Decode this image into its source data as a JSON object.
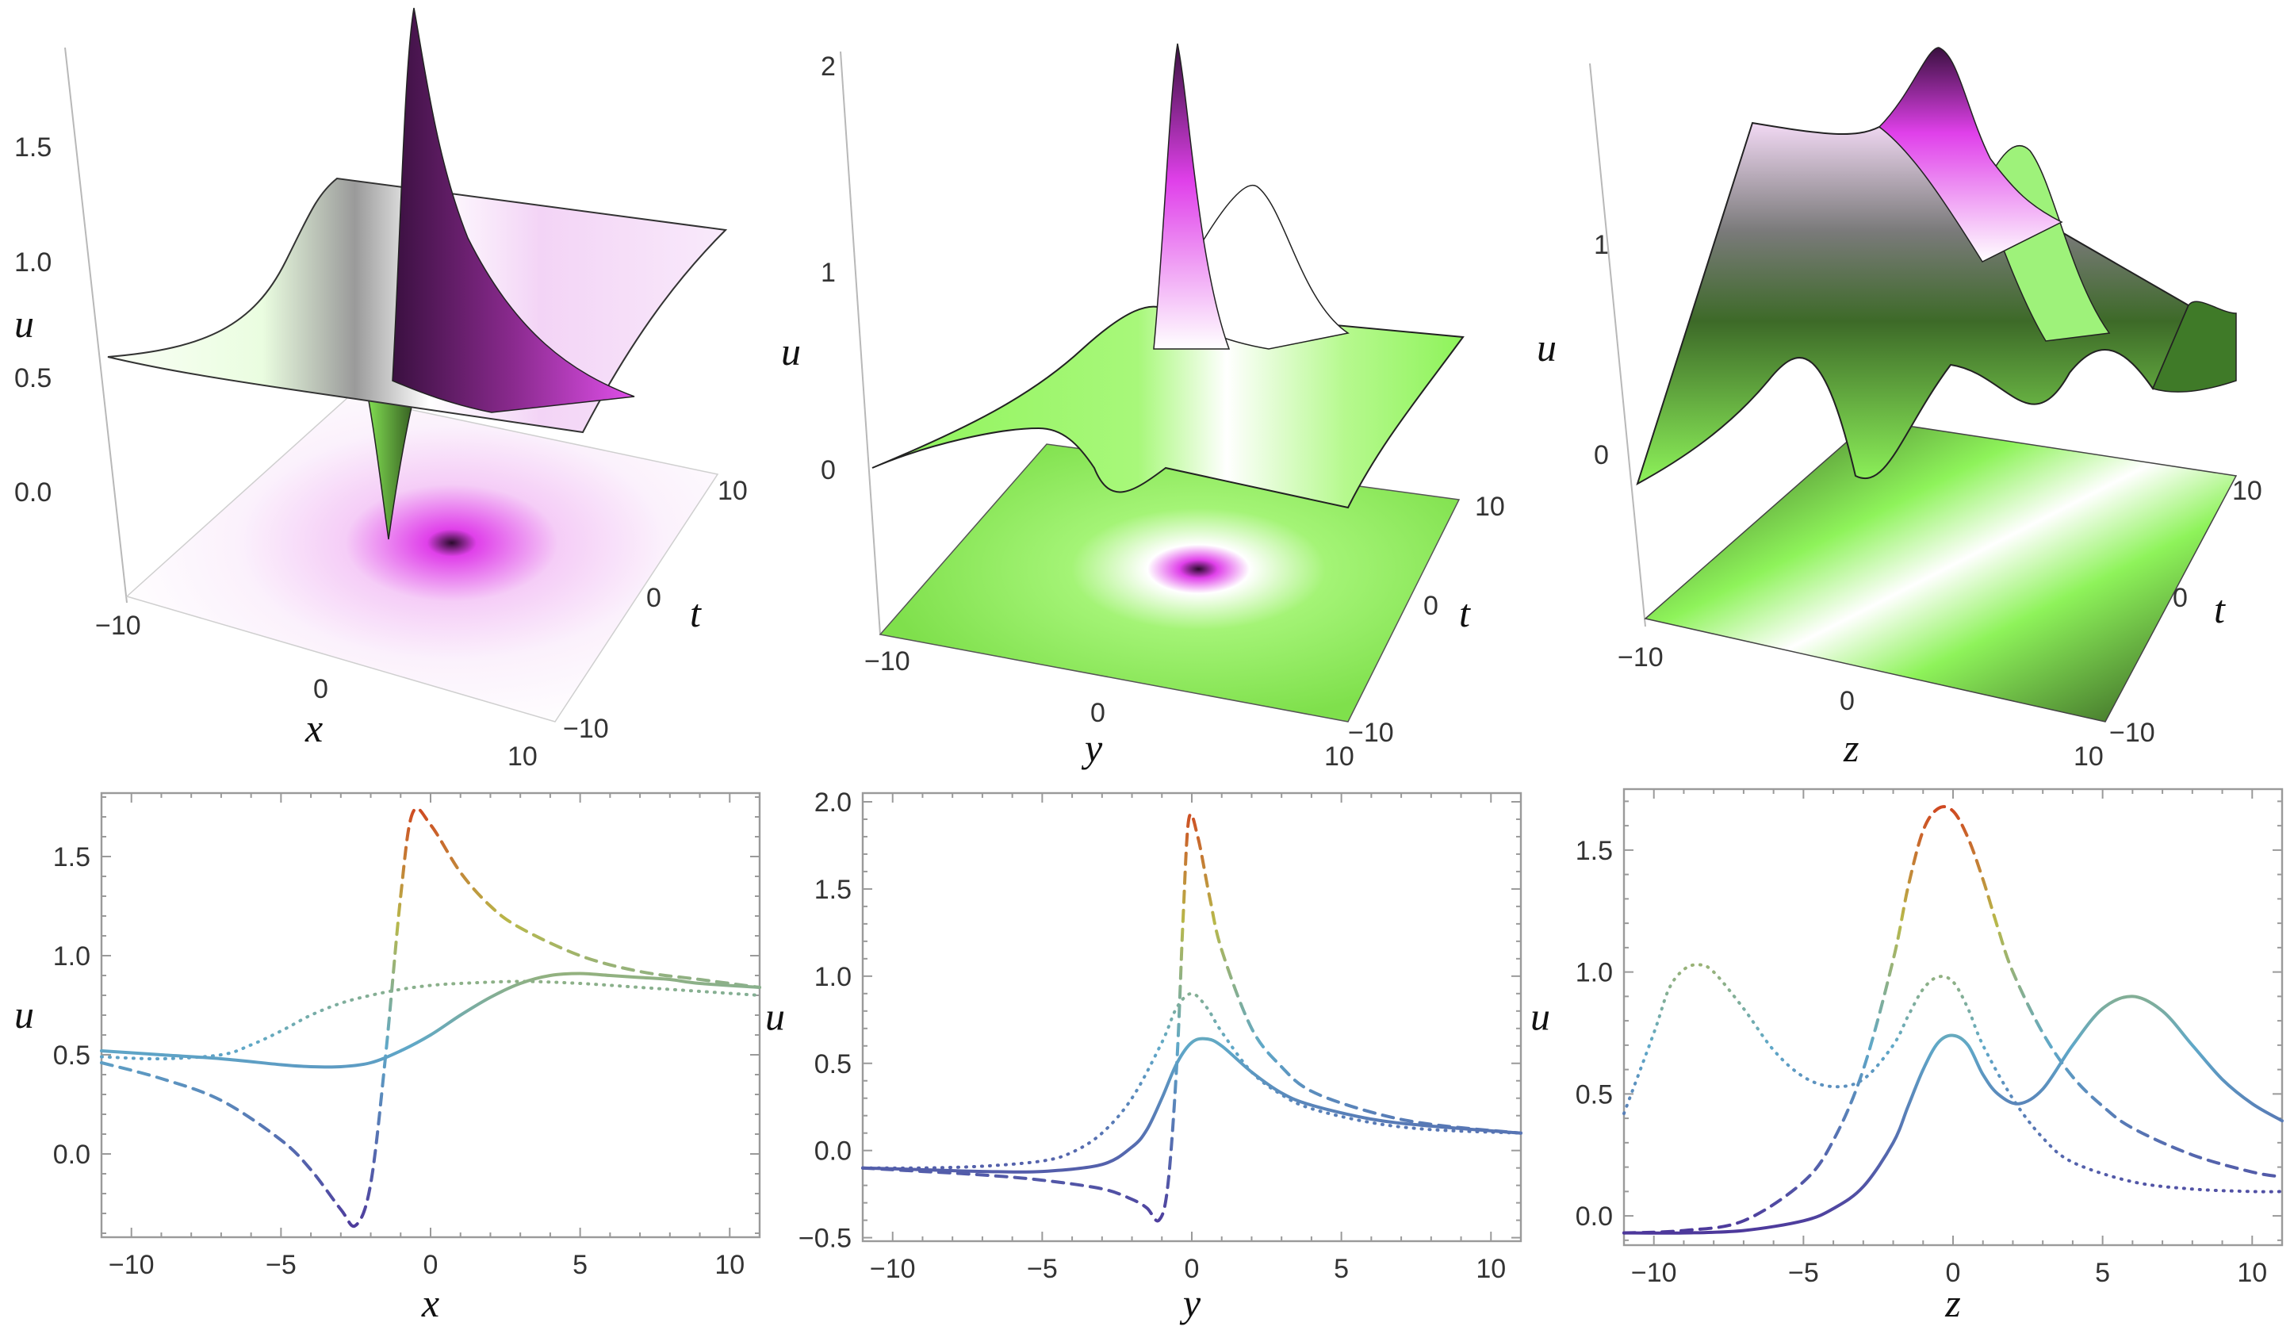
{
  "colors": {
    "axis": "#9a9a9a",
    "gradient_low": "#4b2c96",
    "gradient_mid": "#5fb7b0",
    "gradient_high": "#d23b1c",
    "surface_green": "#8ef35a",
    "surface_darkgreen": "#2f5a1f",
    "surface_magenta": "#e040ea",
    "surface_white": "#ffffff"
  },
  "chart_data": [
    {
      "type": "surface3d",
      "xlabel": "x",
      "ylabel": "t",
      "zlabel": "u",
      "x_ticks": [
        "−10",
        "0",
        "10"
      ],
      "t_ticks": [
        "−10",
        "0",
        "10"
      ],
      "z_ticks": [
        "0.0",
        "0.5",
        "1.0",
        "1.5"
      ],
      "xlim": [
        -10,
        10
      ],
      "tlim": [
        -10,
        10
      ],
      "zlim": [
        -0.4,
        1.9
      ],
      "peak_u": 1.85,
      "min_u": -0.35
    },
    {
      "type": "surface3d",
      "xlabel": "y",
      "ylabel": "t",
      "zlabel": "u",
      "x_ticks": [
        "−10",
        "0",
        "10"
      ],
      "t_ticks": [
        "−10",
        "0",
        "10"
      ],
      "z_ticks": [
        "0",
        "1",
        "2"
      ],
      "xlim": [
        -10,
        10
      ],
      "tlim": [
        -10,
        10
      ],
      "zlim": [
        -0.5,
        2.1
      ],
      "peak_u": 2.0,
      "min_u": -0.4
    },
    {
      "type": "surface3d",
      "xlabel": "z",
      "ylabel": "t",
      "zlabel": "u",
      "x_ticks": [
        "−10",
        "0",
        "10"
      ],
      "t_ticks": [
        "−10",
        "0",
        "10"
      ],
      "z_ticks": [
        "0",
        "1"
      ],
      "xlim": [
        -10,
        10
      ],
      "tlim": [
        -10,
        10
      ],
      "zlim": [
        -0.1,
        1.8
      ],
      "peak_u": 1.75,
      "min_u": 0.0
    },
    {
      "type": "line",
      "xlabel": "x",
      "ylabel": "u",
      "xlim": [
        -11,
        11
      ],
      "ylim": [
        -0.42,
        1.82
      ],
      "x_ticks": [
        -10,
        -5,
        0,
        5,
        10
      ],
      "y_ticks": [
        0.0,
        0.5,
        1.0,
        1.5
      ],
      "y_tick_labels": [
        "0.0",
        "0.5",
        "1.0",
        "1.5"
      ],
      "grid": false,
      "series": [
        {
          "style": "solid",
          "x": [
            -11,
            -9,
            -7,
            -5,
            -4,
            -3,
            -2,
            -1,
            0,
            1,
            2,
            3,
            4,
            5,
            6,
            7,
            8,
            9,
            11
          ],
          "y": [
            0.52,
            0.5,
            0.48,
            0.45,
            0.44,
            0.44,
            0.46,
            0.52,
            0.6,
            0.7,
            0.79,
            0.86,
            0.9,
            0.91,
            0.9,
            0.89,
            0.88,
            0.86,
            0.84
          ]
        },
        {
          "style": "dashed",
          "x": [
            -11,
            -9,
            -7,
            -5,
            -4,
            -3,
            -2.5,
            -2,
            -1.5,
            -1,
            -0.6,
            0,
            1,
            2,
            3,
            5,
            7,
            9,
            11
          ],
          "y": [
            0.46,
            0.38,
            0.27,
            0.07,
            -0.08,
            -0.28,
            -0.36,
            -0.15,
            0.5,
            1.3,
            1.72,
            1.66,
            1.42,
            1.25,
            1.14,
            1.0,
            0.92,
            0.88,
            0.84
          ]
        },
        {
          "style": "dotted",
          "x": [
            -11,
            -9,
            -7,
            -6,
            -5,
            -4,
            -3,
            -2,
            -1,
            0,
            1,
            3,
            5,
            7,
            9,
            11
          ],
          "y": [
            0.49,
            0.48,
            0.5,
            0.55,
            0.62,
            0.7,
            0.76,
            0.8,
            0.83,
            0.85,
            0.86,
            0.87,
            0.86,
            0.84,
            0.82,
            0.8
          ]
        }
      ]
    },
    {
      "type": "line",
      "xlabel": "y",
      "ylabel": "u",
      "xlim": [
        -11,
        11
      ],
      "ylim": [
        -0.52,
        2.05
      ],
      "x_ticks": [
        -10,
        -5,
        0,
        5,
        10
      ],
      "y_ticks": [
        -0.5,
        0.0,
        0.5,
        1.0,
        1.5,
        2.0
      ],
      "y_tick_labels": [
        "−0.5",
        "0.0",
        "0.5",
        "1.0",
        "1.5",
        "2.0"
      ],
      "grid": false,
      "series": [
        {
          "style": "solid",
          "x": [
            -11,
            -9,
            -7,
            -5,
            -3,
            -2,
            -1.5,
            -1,
            -0.5,
            0,
            0.5,
            1,
            2,
            3,
            4,
            6,
            8,
            11
          ],
          "y": [
            -0.1,
            -0.11,
            -0.12,
            -0.12,
            -0.08,
            0.02,
            0.12,
            0.3,
            0.5,
            0.62,
            0.64,
            0.6,
            0.45,
            0.33,
            0.26,
            0.18,
            0.14,
            0.1
          ]
        },
        {
          "style": "dashed",
          "x": [
            -11,
            -9,
            -7,
            -5,
            -3,
            -2,
            -1.5,
            -1.1,
            -0.8,
            -0.5,
            -0.3,
            -0.1,
            0.2,
            0.6,
            1,
            2,
            3,
            4,
            6,
            8,
            11
          ],
          "y": [
            -0.1,
            -0.12,
            -0.14,
            -0.17,
            -0.22,
            -0.28,
            -0.33,
            -0.4,
            -0.2,
            0.5,
            1.3,
            1.9,
            1.8,
            1.45,
            1.15,
            0.7,
            0.48,
            0.34,
            0.22,
            0.15,
            0.1
          ]
        },
        {
          "style": "dotted",
          "x": [
            -11,
            -9,
            -7,
            -5,
            -4,
            -3,
            -2,
            -1,
            -0.5,
            0,
            0.5,
            1,
            2,
            3,
            4,
            6,
            8,
            11
          ],
          "y": [
            -0.1,
            -0.1,
            -0.09,
            -0.06,
            -0.01,
            0.1,
            0.3,
            0.62,
            0.82,
            0.9,
            0.82,
            0.68,
            0.45,
            0.32,
            0.24,
            0.16,
            0.12,
            0.1
          ]
        }
      ]
    },
    {
      "type": "line",
      "xlabel": "z",
      "ylabel": "u",
      "xlim": [
        -11,
        11
      ],
      "ylim": [
        -0.12,
        1.75
      ],
      "x_ticks": [
        -10,
        -5,
        0,
        5,
        10
      ],
      "y_ticks": [
        0.0,
        0.5,
        1.0,
        1.5
      ],
      "y_tick_labels": [
        "0.0",
        "0.5",
        "1.0",
        "1.5"
      ],
      "grid": false,
      "series": [
        {
          "style": "solid",
          "x": [
            -11,
            -9,
            -7,
            -5,
            -4,
            -3,
            -2,
            -1.5,
            -1,
            -0.5,
            0,
            0.5,
            1,
            1.5,
            2.2,
            3,
            4,
            5,
            6,
            7,
            8,
            9,
            10,
            11
          ],
          "y": [
            -0.07,
            -0.07,
            -0.06,
            -0.02,
            0.03,
            0.12,
            0.3,
            0.45,
            0.6,
            0.71,
            0.74,
            0.7,
            0.58,
            0.5,
            0.46,
            0.52,
            0.7,
            0.85,
            0.9,
            0.84,
            0.7,
            0.56,
            0.46,
            0.39
          ]
        },
        {
          "style": "dashed",
          "x": [
            -11,
            -9,
            -7,
            -5,
            -4,
            -3,
            -2,
            -1.5,
            -1,
            -0.5,
            0,
            0.5,
            1,
            1.5,
            2,
            3,
            4,
            5,
            6,
            8,
            10,
            11
          ],
          "y": [
            -0.07,
            -0.06,
            -0.02,
            0.14,
            0.31,
            0.6,
            1.05,
            1.35,
            1.58,
            1.67,
            1.66,
            1.55,
            1.38,
            1.18,
            1.0,
            0.75,
            0.57,
            0.45,
            0.36,
            0.25,
            0.18,
            0.16
          ]
        },
        {
          "style": "dotted",
          "x": [
            -11,
            -10,
            -9.5,
            -9,
            -8.5,
            -8,
            -7,
            -6,
            -5,
            -4,
            -3,
            -2,
            -1.5,
            -1,
            -0.5,
            0,
            0.5,
            1,
            2,
            3,
            4,
            6,
            8,
            10,
            11
          ],
          "y": [
            0.42,
            0.75,
            0.93,
            1.01,
            1.03,
            1.0,
            0.85,
            0.68,
            0.57,
            0.53,
            0.56,
            0.7,
            0.82,
            0.93,
            0.98,
            0.96,
            0.85,
            0.7,
            0.48,
            0.32,
            0.22,
            0.14,
            0.11,
            0.1,
            0.1
          ]
        }
      ]
    }
  ]
}
